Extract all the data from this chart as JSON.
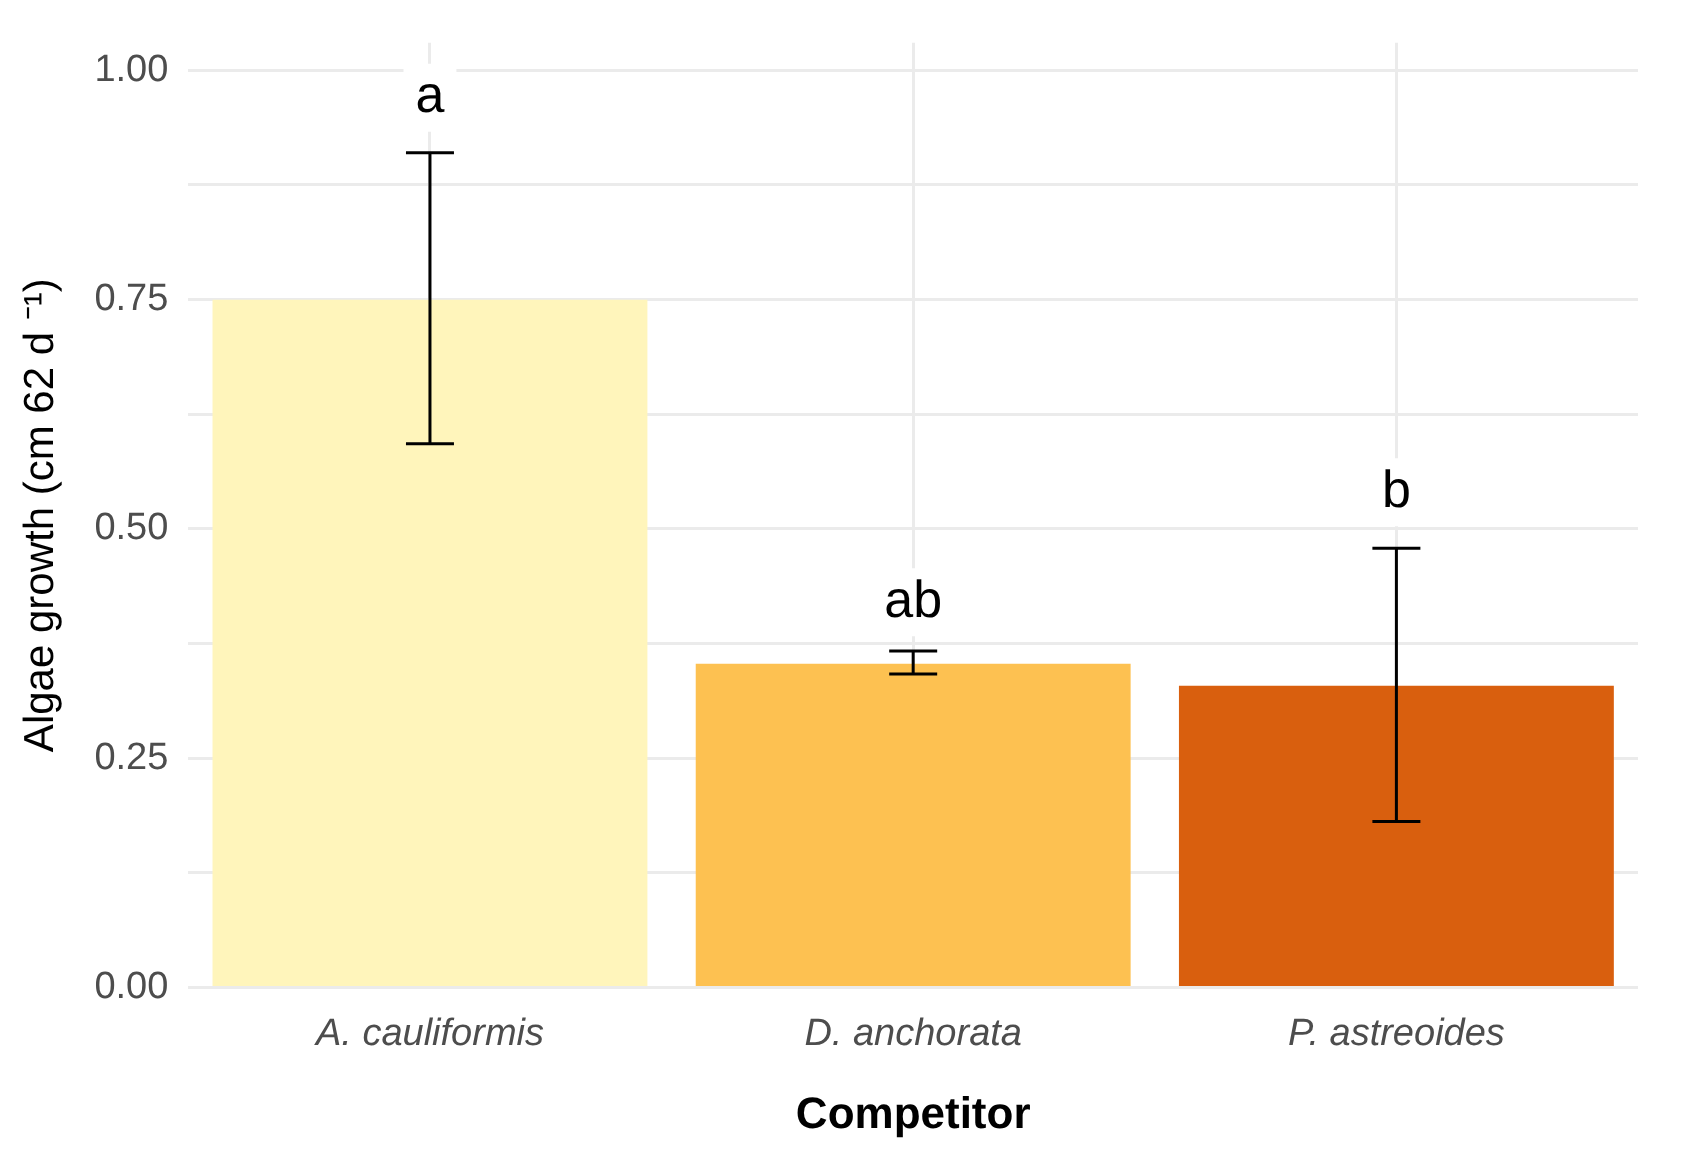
{
  "chart_data": {
    "type": "bar",
    "xlabel": "Competitor",
    "ylabel": "Algae growth (cm 62 d ⁻¹)",
    "categories": [
      "A. cauliformis",
      "D. anchorata",
      "P. astreoides"
    ],
    "values": [
      0.75,
      0.353,
      0.329
    ],
    "colors": [
      "#fff5bb",
      "#fdc151",
      "#d95f0e"
    ],
    "errors": [
      [
        0.593,
        0.91
      ],
      [
        0.342,
        0.367
      ],
      [
        0.181,
        0.479
      ]
    ],
    "ylim": [
      0,
      1.03
    ],
    "yticks": [
      {
        "value": 0,
        "label": "0.00"
      },
      {
        "value": 0.125,
        "label": null
      },
      0.25,
      {
        "value": 0.375,
        "label": null
      },
      {
        "value": 0.5,
        "label": "0.50"
      },
      {
        "value": 0.625,
        "label": null
      },
      0.75,
      {
        "value": 0.875,
        "label": null
      },
      {
        "value": 1,
        "label": "1.00"
      }
    ],
    "grid": true,
    "legend": false,
    "annotations": [
      {
        "text": "a",
        "x": "A. cauliformis",
        "y": 0.97
      },
      {
        "text": "ab",
        "x": "D. anchorata",
        "y": 0.42
      },
      {
        "text": "b",
        "x": "P. astreoides",
        "y": 0.54
      }
    ]
  }
}
